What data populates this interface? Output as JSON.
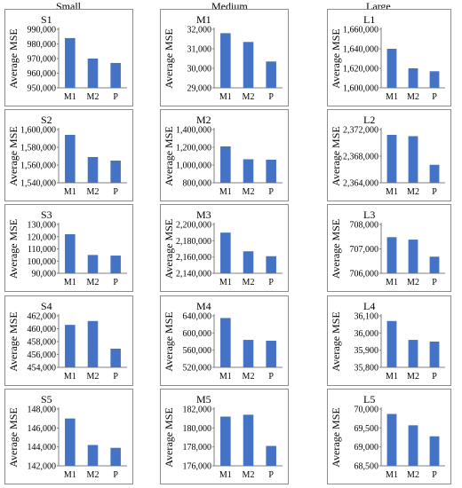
{
  "column_headers": [
    "Small",
    "Medium",
    "Large"
  ],
  "colors": {
    "bar": "#4472C4",
    "axis": "#7f7f7f",
    "border": "#8c8c8c"
  },
  "chart_data": [
    {
      "type": "bar",
      "title": "S1",
      "ylabel": "Average MSE",
      "categories": [
        "M1",
        "M2",
        "P"
      ],
      "values": [
        984000,
        970000,
        967000
      ],
      "ylim": [
        950000,
        990000
      ],
      "yticks": [
        "990,000",
        "980,000",
        "970,000",
        "960,000",
        "950,000"
      ]
    },
    {
      "type": "bar",
      "title": "S2",
      "ylabel": "Average MSE",
      "categories": [
        "M1",
        "M2",
        "P"
      ],
      "values": [
        1594000,
        1569000,
        1565000
      ],
      "ylim": [
        1540000,
        1600000
      ],
      "yticks": [
        "1,600,000",
        "1,580,000",
        "1,560,000",
        "1,540,000"
      ]
    },
    {
      "type": "bar",
      "title": "S3",
      "ylabel": "Average MSE",
      "categories": [
        "M1",
        "M2",
        "P"
      ],
      "values": [
        122000,
        105000,
        104500
      ],
      "ylim": [
        90000,
        130000
      ],
      "yticks": [
        "130,000",
        "120,000",
        "110,000",
        "100,000",
        "90,000"
      ]
    },
    {
      "type": "bar",
      "title": "S4",
      "ylabel": "Average MSE",
      "categories": [
        "M1",
        "M2",
        "P"
      ],
      "values": [
        460600,
        461200,
        456900
      ],
      "ylim": [
        454000,
        462000
      ],
      "yticks": [
        "462,000",
        "460,000",
        "458,000",
        "456,000",
        "454,000"
      ]
    },
    {
      "type": "bar",
      "title": "S5",
      "ylabel": "Average MSE",
      "categories": [
        "M1",
        "M2",
        "P"
      ],
      "values": [
        147000,
        144200,
        143900
      ],
      "ylim": [
        142000,
        148000
      ],
      "yticks": [
        "148,000",
        "146,000",
        "144,000",
        "142,000"
      ]
    },
    {
      "type": "bar",
      "title": "M1",
      "ylabel": "Average MSE",
      "categories": [
        "M1",
        "M2",
        "P"
      ],
      "values": [
        31800,
        31350,
        30350
      ],
      "ylim": [
        29000,
        32000
      ],
      "yticks": [
        "32,000",
        "31,000",
        "30,000",
        "29,000"
      ]
    },
    {
      "type": "bar",
      "title": "M2",
      "ylabel": "Average MSE",
      "categories": [
        "M1",
        "M2",
        "P"
      ],
      "values": [
        1210000,
        1065000,
        1060000
      ],
      "ylim": [
        800000,
        1400000
      ],
      "yticks": [
        "1,400,000",
        "1,200,000",
        "1,000,000",
        "800,000"
      ]
    },
    {
      "type": "bar",
      "title": "M3",
      "ylabel": "Average MSE",
      "categories": [
        "M1",
        "M2",
        "P"
      ],
      "values": [
        2190000,
        2167000,
        2161000
      ],
      "ylim": [
        2140000,
        2200000
      ],
      "yticks": [
        "2,200,000",
        "2,180,000",
        "2,160,000",
        "2,140,000"
      ]
    },
    {
      "type": "bar",
      "title": "M4",
      "ylabel": "Average MSE",
      "categories": [
        "M1",
        "M2",
        "P"
      ],
      "values": [
        635000,
        584000,
        582000
      ],
      "ylim": [
        520000,
        640000
      ],
      "yticks": [
        "640,000",
        "600,000",
        "560,000",
        "520,000"
      ]
    },
    {
      "type": "bar",
      "title": "M5",
      "ylabel": "Average MSE",
      "categories": [
        "M1",
        "M2",
        "P"
      ],
      "values": [
        181200,
        181400,
        178100
      ],
      "ylim": [
        176000,
        182000
      ],
      "yticks": [
        "182,000",
        "180,000",
        "178,000",
        "176,000"
      ]
    },
    {
      "type": "bar",
      "title": "L1",
      "ylabel": "Average MSE",
      "categories": [
        "M1",
        "M2",
        "P"
      ],
      "values": [
        1640000,
        1620000,
        1617000
      ],
      "ylim": [
        1600000,
        1660000
      ],
      "yticks": [
        "1,660,000",
        "1,640,000",
        "1,620,000",
        "1,600,000"
      ]
    },
    {
      "type": "bar",
      "title": "L2",
      "ylabel": "Average MSE",
      "categories": [
        "M1",
        "M2",
        "P"
      ],
      "values": [
        2371200,
        2371000,
        2366700
      ],
      "ylim": [
        2364000,
        2372000
      ],
      "yticks": [
        "2,372,000",
        "2,368,000",
        "2,364,000"
      ]
    },
    {
      "type": "bar",
      "title": "L3",
      "ylabel": "Average MSE",
      "categories": [
        "M1",
        "M2",
        "P"
      ],
      "values": [
        707480,
        707380,
        706680
      ],
      "ylim": [
        706000,
        708000
      ],
      "yticks": [
        "708,000",
        "707,000",
        "706,000"
      ]
    },
    {
      "type": "bar",
      "title": "L4",
      "ylabel": "Average MSE",
      "categories": [
        "M1",
        "M2",
        "P"
      ],
      "values": [
        36070,
        35960,
        35950
      ],
      "ylim": [
        35800,
        36100
      ],
      "yticks": [
        "36,100",
        "36,000",
        "35,900",
        "35,800"
      ]
    },
    {
      "type": "bar",
      "title": "L5",
      "ylabel": "Average MSE",
      "categories": [
        "M1",
        "M2",
        "P"
      ],
      "values": [
        69870,
        69570,
        69280
      ],
      "ylim": [
        68500,
        70000
      ],
      "yticks": [
        "70,000",
        "69,500",
        "69,000",
        "68,500"
      ]
    }
  ]
}
